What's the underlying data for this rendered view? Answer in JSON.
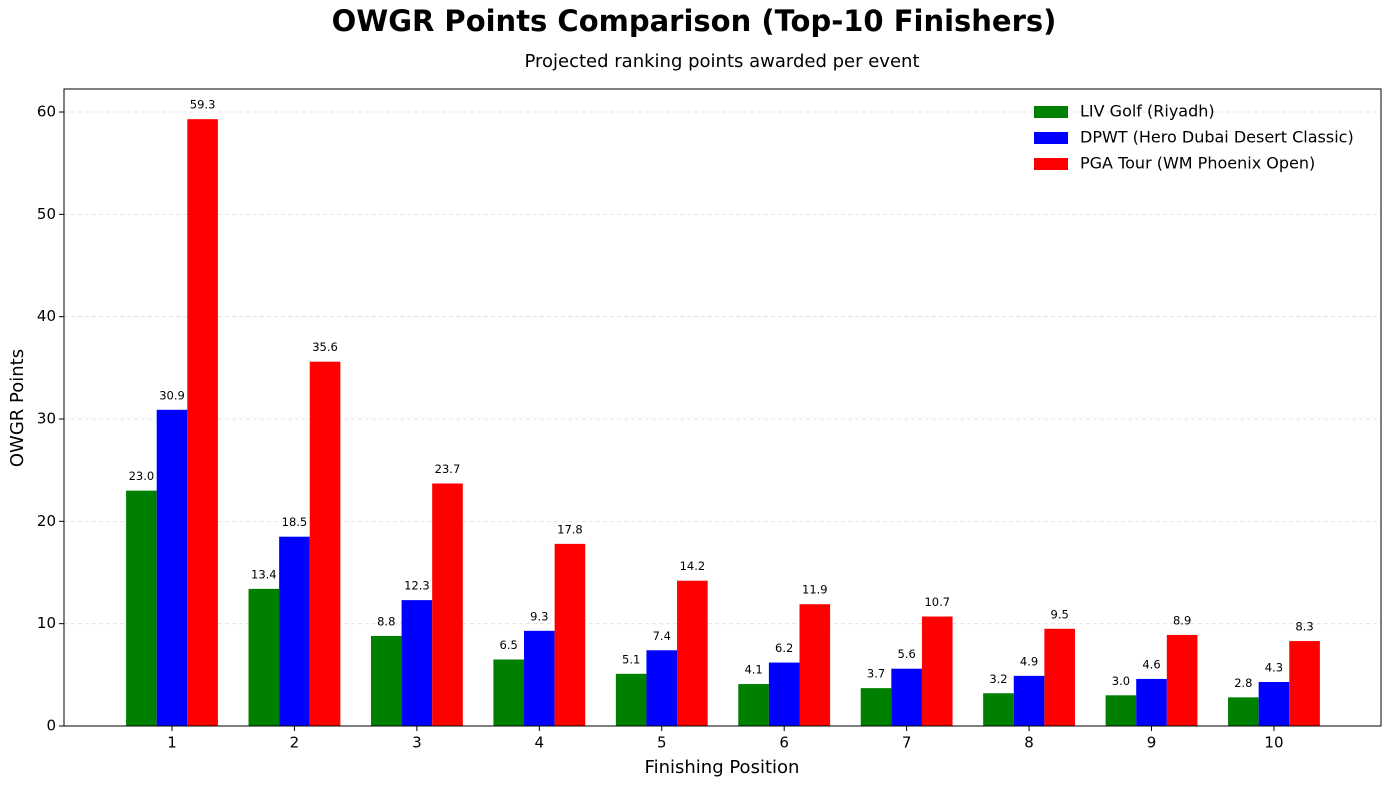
{
  "chart_data": {
    "type": "bar",
    "title": "OWGR Points Comparison (Top-10 Finishers)",
    "subtitle": "Projected ranking points awarded per event",
    "x_label": "Finishing Position",
    "y_label": "OWGR Points",
    "categories": [
      "1",
      "2",
      "3",
      "4",
      "5",
      "6",
      "7",
      "8",
      "9",
      "10"
    ],
    "series": [
      {
        "name": "LIV Golf (Riyadh)",
        "color": "#008000",
        "values": [
          23.0,
          13.4,
          8.8,
          6.5,
          5.1,
          4.1,
          3.7,
          3.2,
          3.0,
          2.8
        ],
        "value_labels": [
          "23.0",
          "13.4",
          "8.8",
          "6.5",
          "5.1",
          "4.1",
          "3.7",
          "3.2",
          "3.0",
          "2.8"
        ]
      },
      {
        "name": "DPWT (Hero Dubai Desert Classic)",
        "color": "#0000ff",
        "values": [
          30.9,
          18.5,
          12.3,
          9.3,
          7.4,
          6.2,
          5.6,
          4.9,
          4.6,
          4.3
        ],
        "value_labels": [
          "30.9",
          "18.5",
          "12.3",
          "9.3",
          "7.4",
          "6.2",
          "5.6",
          "4.9",
          "4.6",
          "4.3"
        ]
      },
      {
        "name": "PGA Tour (WM Phoenix Open)",
        "color": "#ff0000",
        "values": [
          59.3,
          35.6,
          23.7,
          17.8,
          14.2,
          11.9,
          10.7,
          9.5,
          8.9,
          8.3
        ],
        "value_labels": [
          "59.3",
          "35.6",
          "23.7",
          "17.8",
          "14.2",
          "11.9",
          "10.7",
          "9.5",
          "8.9",
          "8.3"
        ]
      }
    ],
    "ylim": [
      0,
      62.25
    ],
    "yticks": [
      0,
      10,
      20,
      30,
      40,
      50,
      60
    ],
    "grid": true,
    "legend": "upper right"
  }
}
